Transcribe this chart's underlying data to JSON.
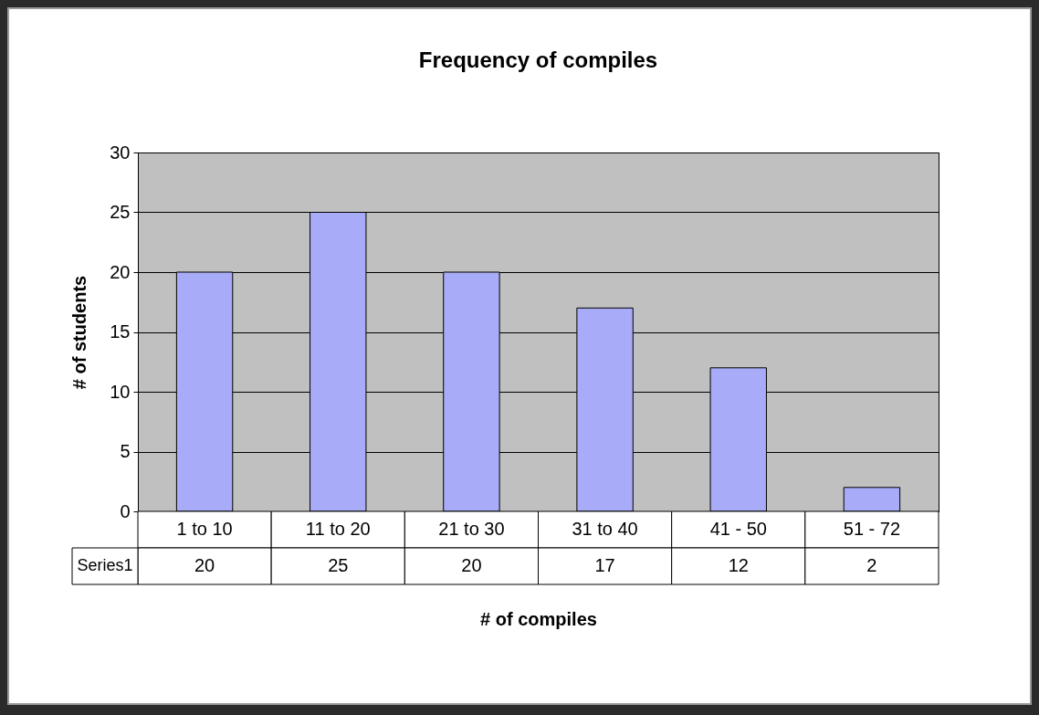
{
  "chart_data": {
    "type": "bar",
    "title": "Frequency of compiles",
    "xlabel": "# of compiles",
    "ylabel": "# of students",
    "categories": [
      "1 to 10",
      "11 to 20",
      "21 to 30",
      "31 to 40",
      "41 - 50",
      "51 - 72"
    ],
    "series": [
      {
        "name": "Series1",
        "color": "#a8abf7",
        "values": [
          20,
          25,
          20,
          17,
          12,
          2
        ]
      }
    ],
    "ylim": [
      0,
      30
    ],
    "yticks": [
      0,
      5,
      10,
      15,
      20,
      25,
      30
    ],
    "grid": "y",
    "data_labels": true
  }
}
